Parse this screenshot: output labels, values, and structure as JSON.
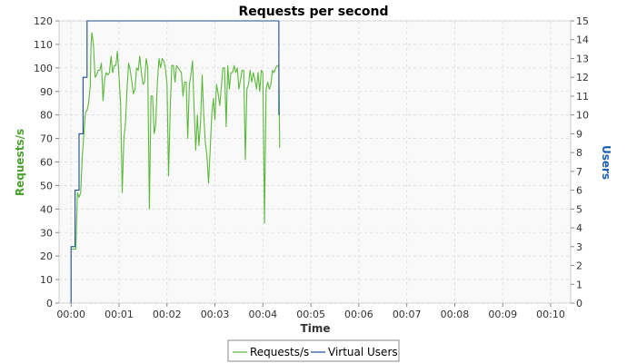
{
  "chart_data": {
    "type": "line",
    "title": "Requests per second",
    "xlabel": "Time",
    "ylabel": "Requests/s",
    "y2label": "Users",
    "ylim": [
      0,
      120
    ],
    "y2lim": [
      0,
      15
    ],
    "xlim_seconds": [
      -15,
      625
    ],
    "grid": true,
    "legend_position": "bottom",
    "x_ticks": [
      "00:00",
      "00:01",
      "00:02",
      "00:03",
      "00:04",
      "00:05",
      "00:06",
      "00:07",
      "00:08",
      "00:09",
      "00:10"
    ],
    "y_ticks": [
      0,
      10,
      20,
      30,
      40,
      50,
      60,
      70,
      80,
      90,
      100,
      110,
      120
    ],
    "y2_ticks": [
      0,
      1,
      2,
      3,
      4,
      5,
      6,
      7,
      8,
      9,
      10,
      11,
      12,
      13,
      14,
      15
    ],
    "colors": {
      "requests": "#5cb83c",
      "users": "#1f4e8c",
      "ylabel": "#4aa02c",
      "y2label": "#1f5fb0",
      "plot_bg": "#f9f9f9",
      "grid": "#dddddd"
    },
    "series": [
      {
        "name": "Requests/s",
        "axis": "left",
        "points": [
          [
            "00:00",
            23
          ],
          [
            "00:02",
            23
          ],
          [
            "00:04",
            23
          ],
          [
            "00:06",
            23
          ],
          [
            "00:08",
            47
          ],
          [
            "00:10",
            45
          ],
          [
            "00:12",
            47
          ],
          [
            "00:14",
            62
          ],
          [
            "00:16",
            72
          ],
          [
            "00:18",
            81
          ],
          [
            "00:20",
            82
          ],
          [
            "00:22",
            85
          ],
          [
            "00:24",
            92
          ],
          [
            "00:25",
            110
          ],
          [
            "00:26",
            115
          ],
          [
            "00:28",
            110
          ],
          [
            "00:30",
            96
          ],
          [
            "00:32",
            97
          ],
          [
            "00:34",
            99
          ],
          [
            "00:36",
            99
          ],
          [
            "00:38",
            102
          ],
          [
            "00:40",
            86
          ],
          [
            "00:42",
            95
          ],
          [
            "00:44",
            98
          ],
          [
            "00:46",
            97
          ],
          [
            "00:48",
            98
          ],
          [
            "00:50",
            105
          ],
          [
            "00:52",
            98
          ],
          [
            "00:54",
            101
          ],
          [
            "00:56",
            101
          ],
          [
            "00:58",
            107
          ],
          [
            "01:00",
            96
          ],
          [
            "01:02",
            85
          ],
          [
            "01:04",
            47
          ],
          [
            "01:06",
            70
          ],
          [
            "01:08",
            76
          ],
          [
            "01:10",
            91
          ],
          [
            "01:12",
            102
          ],
          [
            "01:14",
            99
          ],
          [
            "01:16",
            94
          ],
          [
            "01:18",
            89
          ],
          [
            "01:20",
            91
          ],
          [
            "01:22",
            100
          ],
          [
            "01:24",
            99
          ],
          [
            "01:26",
            105
          ],
          [
            "01:28",
            98
          ],
          [
            "01:30",
            93
          ],
          [
            "01:32",
            94
          ],
          [
            "01:34",
            104
          ],
          [
            "01:36",
            100
          ],
          [
            "01:38",
            40
          ],
          [
            "01:40",
            88
          ],
          [
            "01:42",
            88
          ],
          [
            "01:44",
            72
          ],
          [
            "01:46",
            76
          ],
          [
            "01:48",
            94
          ],
          [
            "01:50",
            104
          ],
          [
            "01:52",
            100
          ],
          [
            "01:54",
            104
          ],
          [
            "01:56",
            103
          ],
          [
            "01:58",
            100
          ],
          [
            "02:00",
            93
          ],
          [
            "02:02",
            54
          ],
          [
            "02:04",
            82
          ],
          [
            "02:06",
            101
          ],
          [
            "02:08",
            101
          ],
          [
            "02:10",
            94
          ],
          [
            "02:12",
            101
          ],
          [
            "02:14",
            100
          ],
          [
            "02:16",
            99
          ],
          [
            "02:18",
            98
          ],
          [
            "02:20",
            88
          ],
          [
            "02:22",
            94
          ],
          [
            "02:24",
            94
          ],
          [
            "02:26",
            70
          ],
          [
            "02:28",
            93
          ],
          [
            "02:30",
            97
          ],
          [
            "02:32",
            103
          ],
          [
            "02:34",
            82
          ],
          [
            "02:36",
            65
          ],
          [
            "02:38",
            80
          ],
          [
            "02:40",
            67
          ],
          [
            "02:42",
            77
          ],
          [
            "02:44",
            97
          ],
          [
            "02:46",
            80
          ],
          [
            "02:48",
            68
          ],
          [
            "02:50",
            63
          ],
          [
            "02:52",
            51
          ],
          [
            "02:54",
            65
          ],
          [
            "02:56",
            80
          ],
          [
            "02:58",
            87
          ],
          [
            "03:00",
            78
          ],
          [
            "03:02",
            93
          ],
          [
            "03:04",
            89
          ],
          [
            "03:06",
            84
          ],
          [
            "03:08",
            92
          ],
          [
            "03:10",
            100
          ],
          [
            "03:12",
            100
          ],
          [
            "03:14",
            75
          ],
          [
            "03:16",
            101
          ],
          [
            "03:18",
            91
          ],
          [
            "03:20",
            98
          ],
          [
            "03:22",
            98
          ],
          [
            "03:24",
            101
          ],
          [
            "03:26",
            98
          ],
          [
            "03:28",
            100
          ],
          [
            "03:30",
            91
          ],
          [
            "03:32",
            95
          ],
          [
            "03:34",
            99
          ],
          [
            "03:36",
            99
          ],
          [
            "03:38",
            61
          ],
          [
            "03:40",
            91
          ],
          [
            "03:42",
            93
          ],
          [
            "03:44",
            99
          ],
          [
            "03:46",
            94
          ],
          [
            "03:48",
            98
          ],
          [
            "03:50",
            95
          ],
          [
            "03:52",
            91
          ],
          [
            "03:54",
            98
          ],
          [
            "03:56",
            90
          ],
          [
            "03:58",
            99
          ],
          [
            "04:00",
            98
          ],
          [
            "04:02",
            34
          ],
          [
            "04:04",
            91
          ],
          [
            "04:06",
            94
          ],
          [
            "04:08",
            91
          ],
          [
            "04:10",
            93
          ],
          [
            "04:12",
            99
          ],
          [
            "04:14",
            98
          ],
          [
            "04:16",
            100
          ],
          [
            "04:18",
            101
          ],
          [
            "04:20",
            101
          ],
          [
            "04:21",
            66
          ]
        ]
      },
      {
        "name": "Virtual Users",
        "axis": "right",
        "points": [
          [
            "00:00",
            0
          ],
          [
            "00:00",
            3
          ],
          [
            "00:05",
            3
          ],
          [
            "00:05",
            6
          ],
          [
            "00:10",
            6
          ],
          [
            "00:10",
            9
          ],
          [
            "00:15",
            9
          ],
          [
            "00:15",
            12
          ],
          [
            "00:20",
            12
          ],
          [
            "00:20",
            15
          ],
          [
            "04:20",
            15
          ],
          [
            "04:20",
            10
          ]
        ]
      }
    ]
  }
}
